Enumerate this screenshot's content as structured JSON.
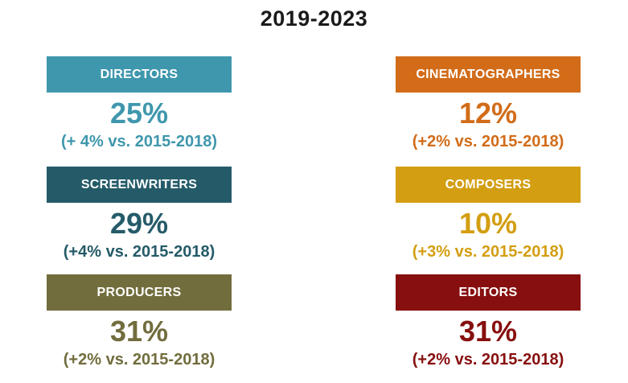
{
  "title": "2019-2023",
  "roles": [
    {
      "key": "directors",
      "label": "DIRECTORS",
      "value": "25%",
      "change": "(+ 4% vs. 2015-2018)",
      "color": "#3f97ad"
    },
    {
      "key": "cinematographers",
      "label": "CINEMATOGRAPHERS",
      "value": "12%",
      "change": "(+2% vs. 2015-2018)",
      "color": "#d26c19"
    },
    {
      "key": "screenwriters",
      "label": "SCREENWRITERS",
      "value": "29%",
      "change": "(+4% vs. 2015-2018)",
      "color": "#255b69"
    },
    {
      "key": "composers",
      "label": "COMPOSERS",
      "value": "10%",
      "change": "(+3% vs. 2015-2018)",
      "color": "#d39e12"
    },
    {
      "key": "producers",
      "label": "PRODUCERS",
      "value": "31%",
      "change": "(+2% vs. 2015-2018)",
      "color": "#716d3d"
    },
    {
      "key": "editors",
      "label": "EDITORS",
      "value": "31%",
      "change": "(+2% vs. 2015-2018)",
      "color": "#870f0f"
    }
  ]
}
